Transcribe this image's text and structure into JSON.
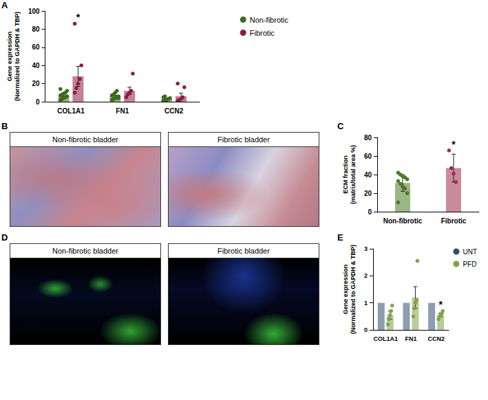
{
  "chart_data": [
    {
      "panel": "A",
      "type": "bar",
      "y_label": "Gene expression\n(Normalized to GAPDH & TBP)",
      "categories": [
        "COL1A1",
        "FN1",
        "CCN2"
      ],
      "series": [
        {
          "name": "Non-fibrotic",
          "color": "#3e6b1f",
          "values": [
            7,
            6,
            3
          ],
          "errors": [
            1.2,
            1.1,
            0.8
          ],
          "points": [
            [
              2,
              3,
              4,
              5,
              6,
              7,
              8,
              9,
              10,
              12,
              14,
              3
            ],
            [
              2,
              3,
              4,
              5,
              6,
              7,
              8,
              10,
              12,
              4
            ],
            [
              1,
              1.5,
              2,
              3,
              4,
              5,
              6,
              2
            ]
          ]
        },
        {
          "name": "Fibrotic",
          "color": "#8c1d40",
          "values": [
            28,
            12,
            6
          ],
          "errors": [
            11,
            4,
            3.5
          ],
          "points": [
            [
              10,
              15,
              20,
              25,
              40,
              86
            ],
            [
              5,
              8,
              10,
              12,
              31
            ],
            [
              1,
              2,
              3,
              5,
              16,
              20
            ]
          ]
        }
      ],
      "annotations": [
        {
          "category": "COL1A1",
          "series": "Fibrotic",
          "text": "*"
        }
      ],
      "ylim": [
        0,
        100
      ],
      "yticks": [
        0,
        20,
        40,
        60,
        80,
        100
      ],
      "grid": false,
      "legend": "right"
    },
    {
      "panel": "C",
      "type": "bar",
      "y_label": "ECM fraction\n(matrix/total area %)",
      "categories": [
        "Non-fibrotic",
        "Fibrotic"
      ],
      "values": [
        31,
        47
      ],
      "errors": [
        9,
        15
      ],
      "colors": [
        "#4a7a23",
        "#9e2a4d"
      ],
      "points": [
        [
          42,
          40,
          38,
          37,
          35,
          33,
          30,
          27,
          25,
          20,
          10
        ],
        [
          66,
          47,
          41,
          32
        ]
      ],
      "annotations": [
        {
          "category": "Fibrotic",
          "text": "*"
        }
      ],
      "ylim": [
        0,
        80
      ],
      "yticks": [
        0,
        20,
        40,
        60,
        80
      ],
      "grid": false
    },
    {
      "panel": "E",
      "type": "bar",
      "y_label": "Gene expression\n(Normalized to GAPDH & TBP)",
      "categories": [
        "COL1A1",
        "FN1",
        "CCN2"
      ],
      "series": [
        {
          "name": "UNT",
          "color": "#2f4f6f",
          "values": [
            1,
            1,
            1
          ]
        },
        {
          "name": "PFD",
          "color": "#7fa34a",
          "values": [
            0.55,
            1.2,
            0.55
          ],
          "errors": [
            0.15,
            0.4,
            0.07
          ],
          "points": [
            [
              0.2,
              0.4,
              0.55,
              0.7,
              0.9
            ],
            [
              0.5,
              0.8,
              1.0,
              1.1,
              2.55
            ],
            [
              0.4,
              0.5,
              0.55,
              0.6,
              0.7
            ]
          ]
        }
      ],
      "annotations": [
        {
          "category": "CCN2",
          "series": "PFD",
          "text": "*"
        }
      ],
      "ylim": [
        0,
        3
      ],
      "yticks": [
        0,
        1,
        2,
        3
      ],
      "grid": false,
      "legend": "right"
    }
  ],
  "image_panels": [
    {
      "panel": "B",
      "titles": [
        "Non-fibrotic bladder",
        "Fibrotic bladder"
      ]
    },
    {
      "panel": "D",
      "titles": [
        "Non-fibrotic bladder",
        "Fibrotic bladder"
      ]
    }
  ]
}
